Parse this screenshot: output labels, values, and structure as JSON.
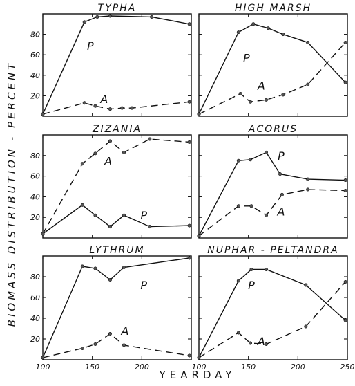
{
  "chart_data": {
    "type": "line",
    "ylabel": "BIOMASS DISTRIBUTION - PERCENT",
    "xlabel": "YEARDAY",
    "x_ticks": [
      100,
      150,
      200,
      250
    ],
    "x_tick_labels": [
      "100",
      "150",
      "200",
      "250"
    ],
    "xlim": [
      100,
      250
    ],
    "ylim": [
      0,
      100
    ],
    "y_ticks": [
      20,
      40,
      60,
      80
    ],
    "y_tick_labels": [
      "20",
      "40",
      "60",
      "80"
    ],
    "panels": [
      {
        "title": "TYPHA",
        "series": [
          {
            "name": "P",
            "style": "solid",
            "points": [
              [
                100,
                2
              ],
              [
                142,
                92
              ],
              [
                155,
                97
              ],
              [
                168,
                98
              ],
              [
                210,
                97
              ],
              [
                248,
                90
              ]
            ]
          },
          {
            "name": "A",
            "style": "dashed",
            "points": [
              [
                100,
                2
              ],
              [
                142,
                13
              ],
              [
                153,
                10
              ],
              [
                168,
                7
              ],
              [
                180,
                8
              ],
              [
                190,
                8
              ],
              [
                248,
                14
              ]
            ]
          }
        ],
        "labels": [
          {
            "series": "P",
            "x": 148,
            "y": 69
          },
          {
            "series": "A",
            "x": 162,
            "y": 17
          }
        ]
      },
      {
        "title": "HIGH MARSH",
        "series": [
          {
            "name": "P",
            "style": "solid",
            "points": [
              [
                100,
                2
              ],
              [
                140,
                82
              ],
              [
                155,
                90
              ],
              [
                170,
                86
              ],
              [
                185,
                80
              ],
              [
                210,
                72
              ],
              [
                248,
                33
              ]
            ]
          },
          {
            "name": "A",
            "style": "dashed",
            "points": [
              [
                100,
                2
              ],
              [
                142,
                22
              ],
              [
                152,
                14
              ],
              [
                168,
                16
              ],
              [
                185,
                21
              ],
              [
                210,
                31
              ],
              [
                248,
                72
              ]
            ]
          }
        ],
        "labels": [
          {
            "series": "P",
            "x": 148,
            "y": 57
          },
          {
            "series": "A",
            "x": 163,
            "y": 30
          }
        ]
      },
      {
        "title": "ZIZANIA",
        "series": [
          {
            "name": "P",
            "style": "solid",
            "points": [
              [
                100,
                4
              ],
              [
                140,
                32
              ],
              [
                153,
                22
              ],
              [
                168,
                11
              ],
              [
                182,
                22
              ],
              [
                208,
                11
              ],
              [
                248,
                12
              ]
            ]
          },
          {
            "name": "A",
            "style": "dashed",
            "points": [
              [
                100,
                4
              ],
              [
                140,
                72
              ],
              [
                153,
                82
              ],
              [
                168,
                94
              ],
              [
                182,
                83
              ],
              [
                208,
                96
              ],
              [
                248,
                93
              ]
            ]
          }
        ],
        "labels": [
          {
            "series": "P",
            "x": 202,
            "y": 22
          },
          {
            "series": "A",
            "x": 166,
            "y": 75
          }
        ]
      },
      {
        "title": "ACORUS",
        "series": [
          {
            "name": "P",
            "style": "solid",
            "points": [
              [
                100,
                2
              ],
              [
                140,
                75
              ],
              [
                152,
                76
              ],
              [
                168,
                83
              ],
              [
                182,
                62
              ],
              [
                210,
                57
              ],
              [
                248,
                56
              ]
            ]
          },
          {
            "name": "A",
            "style": "dashed",
            "points": [
              [
                100,
                2
              ],
              [
                140,
                31
              ],
              [
                153,
                31
              ],
              [
                168,
                22
              ],
              [
                184,
                42
              ],
              [
                210,
                47
              ],
              [
                248,
                46
              ]
            ]
          }
        ],
        "labels": [
          {
            "series": "P",
            "x": 183,
            "y": 80
          },
          {
            "series": "A",
            "x": 183,
            "y": 26
          }
        ]
      },
      {
        "title": "LYTHRUM",
        "series": [
          {
            "name": "P",
            "style": "solid",
            "points": [
              [
                100,
                2
              ],
              [
                140,
                90
              ],
              [
                153,
                88
              ],
              [
                168,
                77
              ],
              [
                182,
                89
              ],
              [
                248,
                98
              ]
            ]
          },
          {
            "name": "A",
            "style": "dashed",
            "points": [
              [
                100,
                2
              ],
              [
                140,
                11
              ],
              [
                153,
                15
              ],
              [
                168,
                25
              ],
              [
                182,
                14
              ],
              [
                248,
                4
              ]
            ]
          }
        ],
        "labels": [
          {
            "series": "P",
            "x": 202,
            "y": 72
          },
          {
            "series": "A",
            "x": 183,
            "y": 28
          }
        ]
      },
      {
        "title": "NUPHAR - PELTANDRA",
        "series": [
          {
            "name": "P",
            "style": "solid",
            "points": [
              [
                100,
                2
              ],
              [
                140,
                76
              ],
              [
                153,
                87
              ],
              [
                168,
                87
              ],
              [
                208,
                72
              ],
              [
                248,
                38
              ]
            ]
          },
          {
            "name": "A",
            "style": "dashed",
            "points": [
              [
                100,
                2
              ],
              [
                140,
                26
              ],
              [
                152,
                16
              ],
              [
                168,
                15
              ],
              [
                208,
                32
              ],
              [
                248,
                75
              ]
            ]
          }
        ],
        "labels": [
          {
            "series": "P",
            "x": 153,
            "y": 72
          },
          {
            "series": "A",
            "x": 163,
            "y": 18
          }
        ]
      }
    ]
  }
}
